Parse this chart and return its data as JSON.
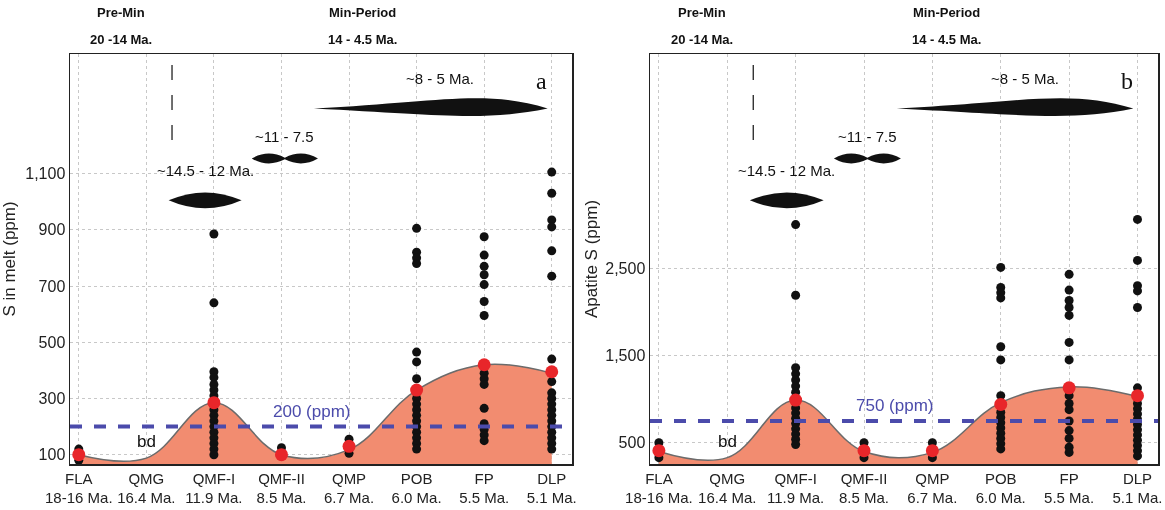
{
  "chart_data": [
    {
      "type": "scatter",
      "ylabel": "S in melt (ppm)",
      "grid": true,
      "categories": [
        "FLA\n18-16 Ma.",
        "QMG\n16.4 Ma.",
        "QMF-I\n11.9 Ma.",
        "QMF-II\n8.5 Ma.",
        "QMP\n6.7 Ma.",
        "POB\n6.0 Ma.",
        "FP\n5.5 Ma.",
        "DLP\n5.1 Ma."
      ],
      "ylim": [
        67,
        1525
      ],
      "yticks": [
        100,
        300,
        500,
        700,
        900,
        {
          "value": 1100,
          "label": "1,100"
        }
      ],
      "series": [
        {
          "type": "area",
          "color": "#f28c70",
          "values": [
            100,
            88,
            285,
            100,
            118,
            330,
            420,
            390
          ]
        },
        {
          "type": "scatter",
          "color": "#111111",
          "marker": "circle",
          "x": [
            "FLA\n18-16 Ma.",
            "FLA\n18-16 Ma.",
            "QMF-I\n11.9 Ma.",
            "QMF-I\n11.9 Ma.",
            "QMF-I\n11.9 Ma.",
            "QMF-I\n11.9 Ma.",
            "QMF-I\n11.9 Ma.",
            "QMF-I\n11.9 Ma.",
            "QMF-I\n11.9 Ma.",
            "QMF-I\n11.9 Ma.",
            "QMF-I\n11.9 Ma.",
            "QMF-I\n11.9 Ma.",
            "QMF-I\n11.9 Ma.",
            "QMF-I\n11.9 Ma.",
            "QMF-I\n11.9 Ma.",
            "QMF-I\n11.9 Ma.",
            "QMF-I\n11.9 Ma.",
            "QMF-I\n11.9 Ma.",
            "QMF-II\n8.5 Ma.",
            "QMP\n6.7 Ma.",
            "QMP\n6.7 Ma.",
            "POB\n6.0 Ma.",
            "POB\n6.0 Ma.",
            "POB\n6.0 Ma.",
            "POB\n6.0 Ma.",
            "POB\n6.0 Ma.",
            "POB\n6.0 Ma.",
            "POB\n6.0 Ma.",
            "POB\n6.0 Ma.",
            "POB\n6.0 Ma.",
            "POB\n6.0 Ma.",
            "POB\n6.0 Ma.",
            "POB\n6.0 Ma.",
            "POB\n6.0 Ma.",
            "POB\n6.0 Ma.",
            "POB\n6.0 Ma.",
            "POB\n6.0 Ma.",
            "POB\n6.0 Ma.",
            "FP\n5.5 Ma.",
            "FP\n5.5 Ma.",
            "FP\n5.5 Ma.",
            "FP\n5.5 Ma.",
            "FP\n5.5 Ma.",
            "FP\n5.5 Ma.",
            "FP\n5.5 Ma.",
            "FP\n5.5 Ma.",
            "FP\n5.5 Ma.",
            "FP\n5.5 Ma.",
            "FP\n5.5 Ma.",
            "FP\n5.5 Ma.",
            "FP\n5.5 Ma.",
            "FP\n5.5 Ma.",
            "FP\n5.5 Ma.",
            "DLP\n5.1 Ma.",
            "DLP\n5.1 Ma.",
            "DLP\n5.1 Ma.",
            "DLP\n5.1 Ma.",
            "DLP\n5.1 Ma.",
            "DLP\n5.1 Ma.",
            "DLP\n5.1 Ma.",
            "DLP\n5.1 Ma.",
            "DLP\n5.1 Ma.",
            "DLP\n5.1 Ma.",
            "DLP\n5.1 Ma.",
            "DLP\n5.1 Ma.",
            "DLP\n5.1 Ma.",
            "DLP\n5.1 Ma.",
            "DLP\n5.1 Ma.",
            "DLP\n5.1 Ma.",
            "DLP\n5.1 Ma.",
            "DLP\n5.1 Ma.",
            "DLP\n5.1 Ma."
          ],
          "values": [
            120,
            80,
            885,
            640,
            395,
            375,
            350,
            330,
            310,
            260,
            240,
            220,
            200,
            180,
            160,
            140,
            120,
            100,
            125,
            155,
            105,
            905,
            820,
            800,
            780,
            465,
            430,
            370,
            300,
            280,
            260,
            240,
            220,
            200,
            180,
            160,
            140,
            120,
            875,
            810,
            770,
            740,
            705,
            645,
            595,
            390,
            370,
            350,
            265,
            210,
            190,
            170,
            150,
            1105,
            1030,
            935,
            910,
            825,
            735,
            440,
            360,
            320,
            300,
            280,
            260,
            240,
            220,
            200,
            180,
            160,
            140,
            120
          ]
        },
        {
          "type": "scatter",
          "color": "#e8262a",
          "marker": "circle",
          "values": [
            100,
            null,
            285,
            100,
            130,
            330,
            420,
            395
          ]
        }
      ],
      "ref_lines": [
        {
          "axis": "y",
          "value": 200,
          "label": "200 (ppm)",
          "color": "#4b4bab",
          "line_style": "dashed"
        }
      ],
      "annotations": [
        "Pre-Min",
        "20 -14 Ma.",
        "Min-Period",
        "14 - 4.5 Ma.",
        "~8 - 5 Ma.",
        "~11 - 7.5",
        "~14.5 - 12 Ma.",
        "a",
        "bd"
      ]
    },
    {
      "type": "scatter",
      "ylabel": "Apatite S (ppm)",
      "grid": true,
      "categories": [
        "FLA\n18-16 Ma.",
        "QMG\n16.4 Ma.",
        "QMF-I\n11.9 Ma.",
        "QMF-II\n8.5 Ma.",
        "QMP\n6.7 Ma.",
        "POB\n6.0 Ma.",
        "FP\n5.5 Ma.",
        "DLP\n5.1 Ma."
      ],
      "ylim": [
        257,
        4955
      ],
      "yticks": [
        500,
        {
          "value": 1500,
          "label": "1,500"
        },
        {
          "value": 2500,
          "label": "2,500"
        }
      ],
      "series": [
        {
          "type": "area",
          "color": "#f28c70",
          "values": [
            400,
            330,
            990,
            400,
            390,
            960,
            1140,
            1030
          ]
        },
        {
          "type": "scatter",
          "color": "#111111",
          "marker": "circle",
          "x": [
            "FLA\n18-16 Ma.",
            "FLA\n18-16 Ma.",
            "QMF-I\n11.9 Ma.",
            "QMF-I\n11.9 Ma.",
            "QMF-I\n11.9 Ma.",
            "QMF-I\n11.9 Ma.",
            "QMF-I\n11.9 Ma.",
            "QMF-I\n11.9 Ma.",
            "QMF-I\n11.9 Ma.",
            "QMF-I\n11.9 Ma.",
            "QMF-I\n11.9 Ma.",
            "QMF-I\n11.9 Ma.",
            "QMF-I\n11.9 Ma.",
            "QMF-I\n11.9 Ma.",
            "QMF-I\n11.9 Ma.",
            "QMF-I\n11.9 Ma.",
            "QMF-I\n11.9 Ma.",
            "QMF-II\n8.5 Ma.",
            "QMF-II\n8.5 Ma.",
            "QMP\n6.7 Ma.",
            "QMP\n6.7 Ma.",
            "POB\n6.0 Ma.",
            "POB\n6.0 Ma.",
            "POB\n6.0 Ma.",
            "POB\n6.0 Ma.",
            "POB\n6.0 Ma.",
            "POB\n6.0 Ma.",
            "POB\n6.0 Ma.",
            "POB\n6.0 Ma.",
            "POB\n6.0 Ma.",
            "POB\n6.0 Ma.",
            "POB\n6.0 Ma.",
            "POB\n6.0 Ma.",
            "POB\n6.0 Ma.",
            "POB\n6.0 Ma.",
            "POB\n6.0 Ma.",
            "FP\n5.5 Ma.",
            "FP\n5.5 Ma.",
            "FP\n5.5 Ma.",
            "FP\n5.5 Ma.",
            "FP\n5.5 Ma.",
            "FP\n5.5 Ma.",
            "FP\n5.5 Ma.",
            "FP\n5.5 Ma.",
            "FP\n5.5 Ma.",
            "FP\n5.5 Ma.",
            "FP\n5.5 Ma.",
            "FP\n5.5 Ma.",
            "FP\n5.5 Ma.",
            "FP\n5.5 Ma.",
            "FP\n5.5 Ma.",
            "DLP\n5.1 Ma.",
            "DLP\n5.1 Ma.",
            "DLP\n5.1 Ma.",
            "DLP\n5.1 Ma.",
            "DLP\n5.1 Ma.",
            "DLP\n5.1 Ma.",
            "DLP\n5.1 Ma.",
            "DLP\n5.1 Ma.",
            "DLP\n5.1 Ma.",
            "DLP\n5.1 Ma.",
            "DLP\n5.1 Ma.",
            "DLP\n5.1 Ma.",
            "DLP\n5.1 Ma.",
            "DLP\n5.1 Ma.",
            "DLP\n5.1 Ma.",
            "DLP\n5.1 Ma.",
            "DLP\n5.1 Ma."
          ],
          "values": [
            500,
            330,
            3000,
            2190,
            1360,
            1290,
            1220,
            1150,
            1080,
            900,
            840,
            780,
            720,
            660,
            600,
            540,
            480,
            500,
            330,
            500,
            330,
            2510,
            2280,
            2220,
            2160,
            1600,
            1450,
            1040,
            850,
            790,
            730,
            670,
            610,
            550,
            490,
            430,
            2430,
            2250,
            2130,
            2050,
            1960,
            1650,
            1450,
            1040,
            950,
            880,
            750,
            640,
            550,
            450,
            390,
            3060,
            2590,
            2300,
            2240,
            2050,
            1130,
            950,
            890,
            830,
            770,
            710,
            650,
            590,
            530,
            470,
            410,
            350
          ]
        },
        {
          "type": "scatter",
          "color": "#e8262a",
          "marker": "circle",
          "values": [
            410,
            null,
            990,
            410,
            410,
            940,
            1130,
            1040
          ]
        }
      ],
      "ref_lines": [
        {
          "axis": "y",
          "value": 750,
          "label": "750 (ppm)",
          "color": "#4b4bab",
          "line_style": "dashed"
        }
      ],
      "annotations": [
        "Pre-Min",
        "20 -14 Ma.",
        "Min-Period",
        "14 - 4.5 Ma.",
        "~8 - 5 Ma.",
        "~11 - 7.5",
        "~14.5 - 12 Ma.",
        "b",
        "bd"
      ]
    }
  ]
}
